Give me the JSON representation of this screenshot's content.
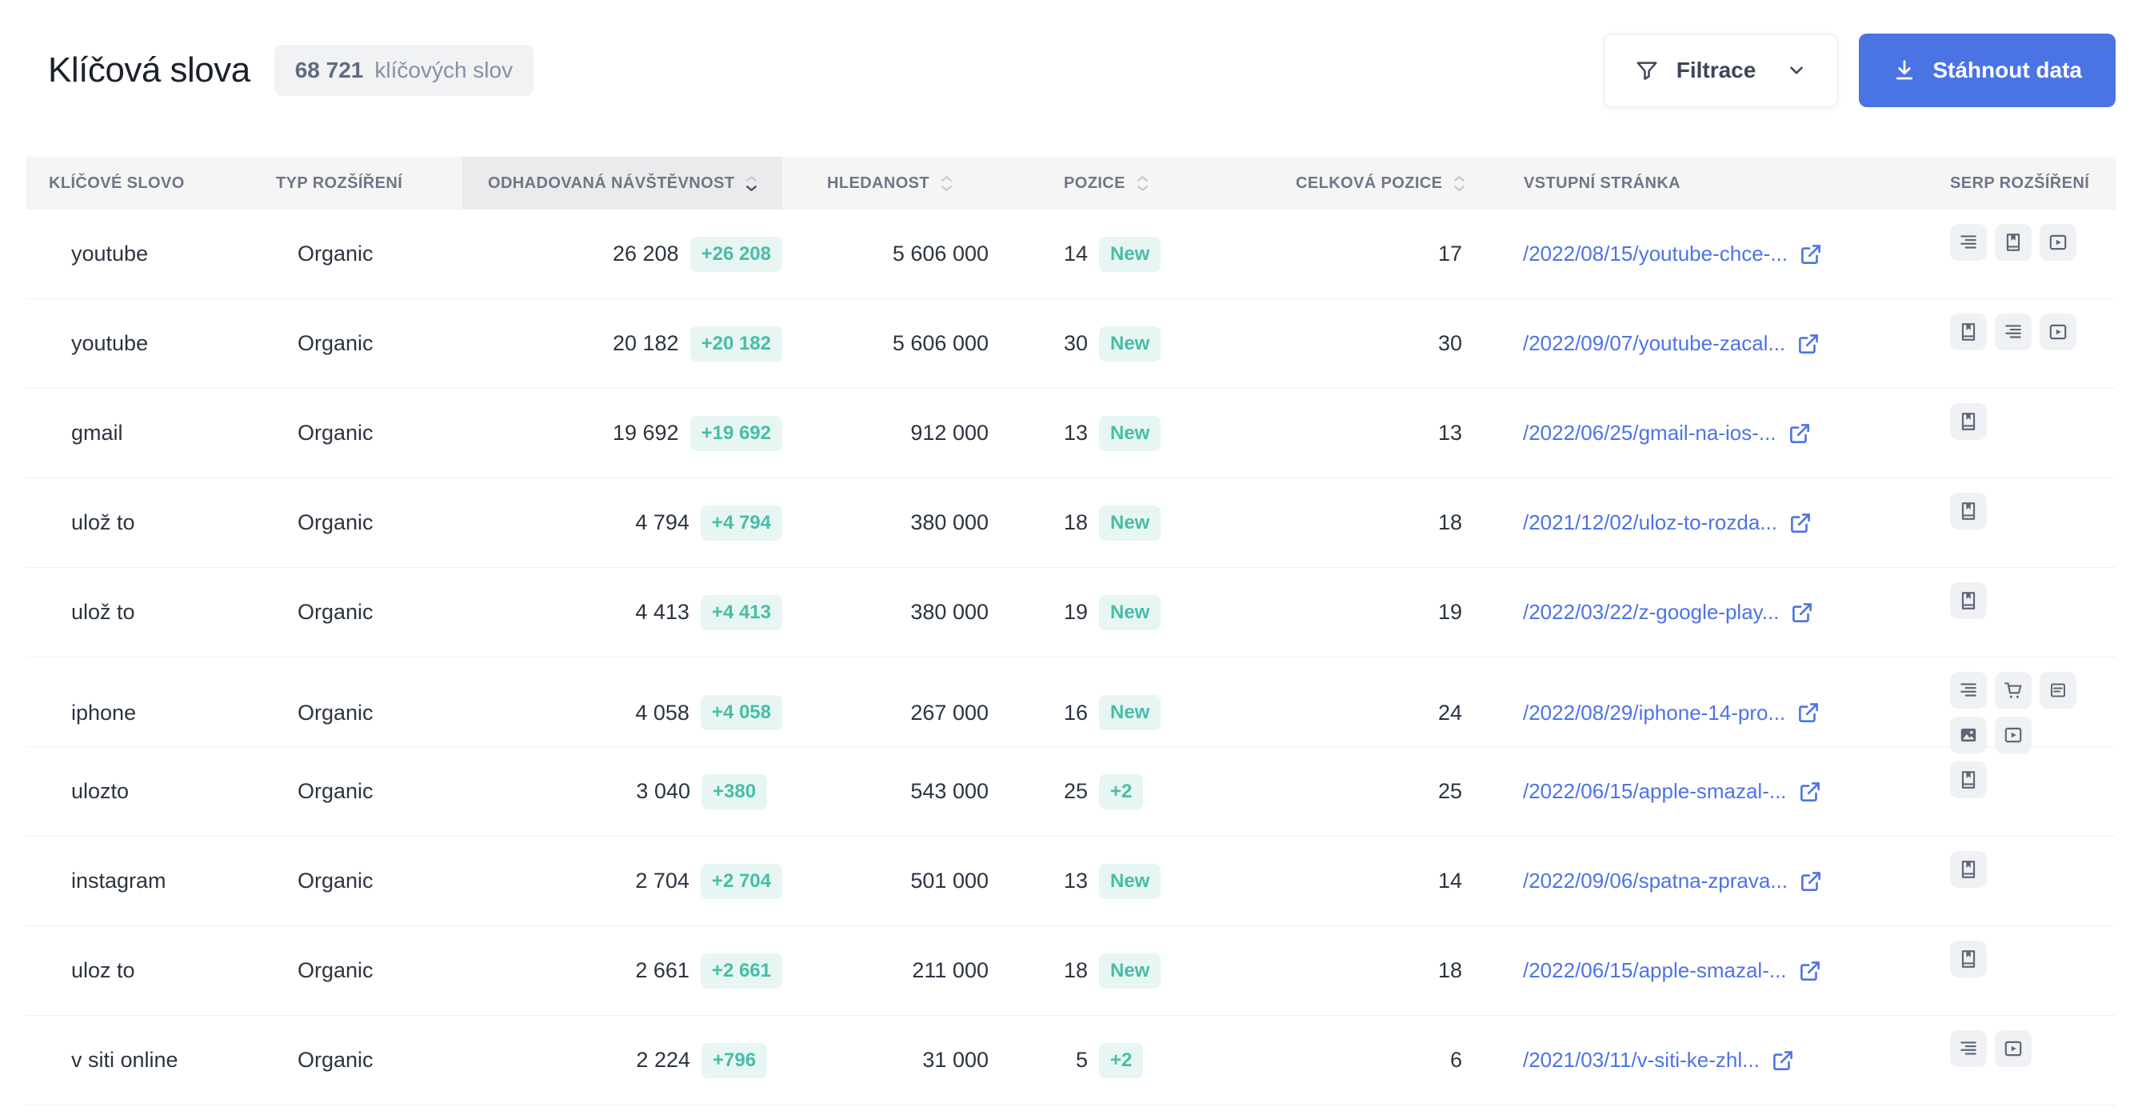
{
  "page": {
    "title": "Klíčová slova",
    "count_badge": {
      "count": "68 721",
      "label": "klíčových slov"
    },
    "filter_button": "Filtrace",
    "download_button": "Stáhnout data"
  },
  "colors": {
    "accent_blue": "#4a73e4",
    "link_blue": "#4d73e6",
    "badge_teal_text": "#47bda8",
    "badge_teal_bg": "#e7f6f2",
    "header_bg": "#f5f5f6",
    "header_active_bg": "#ebebed"
  },
  "table": {
    "columns": [
      {
        "key": "keyword",
        "label": "KLÍČOVÉ SLOVO",
        "sortable": false,
        "sorted": null,
        "highlighted": false
      },
      {
        "key": "type",
        "label": "TYP ROZŠÍŘENÍ",
        "sortable": false,
        "sorted": null,
        "highlighted": false
      },
      {
        "key": "traffic",
        "label": "ODHADOVANÁ NÁVŠTĚVNOST",
        "sortable": true,
        "sorted": "desc",
        "highlighted": true
      },
      {
        "key": "volume",
        "label": "HLEDANOST",
        "sortable": true,
        "sorted": null,
        "highlighted": false
      },
      {
        "key": "position",
        "label": "POZICE",
        "sortable": true,
        "sorted": null,
        "highlighted": false
      },
      {
        "key": "overall",
        "label": "CELKOVÁ POZICE",
        "sortable": true,
        "sorted": null,
        "highlighted": false
      },
      {
        "key": "landing",
        "label": "VSTUPNÍ STRÁNKA",
        "sortable": false,
        "sorted": null,
        "highlighted": false
      },
      {
        "key": "serp",
        "label": "SERP ROZŠÍŘENÍ",
        "sortable": false,
        "sorted": null,
        "highlighted": false
      }
    ],
    "rows": [
      {
        "keyword": "youtube",
        "type": "Organic",
        "traffic": "26 208",
        "traffic_change": "+26 208",
        "volume": "5 606 000",
        "position": "14",
        "position_change": "New",
        "overall": "17",
        "landing": "/2022/08/15/youtube-chce-...",
        "serp": [
          "sitelinks-icon",
          "book-icon",
          "video-icon"
        ]
      },
      {
        "keyword": "youtube",
        "type": "Organic",
        "traffic": "20 182",
        "traffic_change": "+20 182",
        "volume": "5 606 000",
        "position": "30",
        "position_change": "New",
        "overall": "30",
        "landing": "/2022/09/07/youtube-zacal...",
        "serp": [
          "book-icon",
          "sitelinks-icon",
          "video-icon"
        ]
      },
      {
        "keyword": "gmail",
        "type": "Organic",
        "traffic": "19 692",
        "traffic_change": "+19 692",
        "volume": "912 000",
        "position": "13",
        "position_change": "New",
        "overall": "13",
        "landing": "/2022/06/25/gmail-na-ios-...",
        "serp": [
          "book-icon"
        ]
      },
      {
        "keyword": "ulož to",
        "type": "Organic",
        "traffic": "4 794",
        "traffic_change": "+4 794",
        "volume": "380 000",
        "position": "18",
        "position_change": "New",
        "overall": "18",
        "landing": "/2021/12/02/uloz-to-rozda...",
        "serp": [
          "book-icon"
        ]
      },
      {
        "keyword": "ulož to",
        "type": "Organic",
        "traffic": "4 413",
        "traffic_change": "+4 413",
        "volume": "380 000",
        "position": "19",
        "position_change": "New",
        "overall": "19",
        "landing": "/2022/03/22/z-google-play...",
        "serp": [
          "book-icon"
        ]
      },
      {
        "keyword": "iphone",
        "type": "Organic",
        "traffic": "4 058",
        "traffic_change": "+4 058",
        "volume": "267 000",
        "position": "16",
        "position_change": "New",
        "overall": "24",
        "landing": "/2022/08/29/iphone-14-pro...",
        "serp": [
          "sitelinks-icon",
          "cart-icon",
          "snippet-icon",
          "image-icon",
          "video-icon"
        ]
      },
      {
        "keyword": "ulozto",
        "type": "Organic",
        "traffic": "3 040",
        "traffic_change": "+380",
        "volume": "543 000",
        "position": "25",
        "position_change": "+2",
        "overall": "25",
        "landing": "/2022/06/15/apple-smazal-...",
        "serp": [
          "book-icon"
        ]
      },
      {
        "keyword": "instagram",
        "type": "Organic",
        "traffic": "2 704",
        "traffic_change": "+2 704",
        "volume": "501 000",
        "position": "13",
        "position_change": "New",
        "overall": "14",
        "landing": "/2022/09/06/spatna-zprava...",
        "serp": [
          "book-icon"
        ]
      },
      {
        "keyword": "uloz to",
        "type": "Organic",
        "traffic": "2 661",
        "traffic_change": "+2 661",
        "volume": "211 000",
        "position": "18",
        "position_change": "New",
        "overall": "18",
        "landing": "/2022/06/15/apple-smazal-...",
        "serp": [
          "book-icon"
        ]
      },
      {
        "keyword": "v siti online",
        "type": "Organic",
        "traffic": "2 224",
        "traffic_change": "+796",
        "volume": "31 000",
        "position": "5",
        "position_change": "+2",
        "overall": "6",
        "landing": "/2021/03/11/v-siti-ke-zhl...",
        "serp": [
          "sitelinks-icon",
          "video-icon"
        ]
      }
    ]
  }
}
